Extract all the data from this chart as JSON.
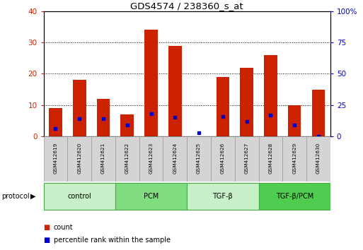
{
  "title": "GDS4574 / 238360_s_at",
  "samples": [
    "GSM412619",
    "GSM412620",
    "GSM412621",
    "GSM412622",
    "GSM412623",
    "GSM412624",
    "GSM412625",
    "GSM412626",
    "GSM412627",
    "GSM412628",
    "GSM412629",
    "GSM412630"
  ],
  "count_values": [
    9,
    18,
    12,
    7,
    34,
    29,
    0,
    19,
    22,
    26,
    10,
    15
  ],
  "percentile_values": [
    6,
    14,
    14,
    9,
    18,
    15,
    3,
    16,
    12,
    17,
    9,
    0
  ],
  "bar_color": "#cc2200",
  "dot_color": "#0000cc",
  "left_ylim": [
    0,
    40
  ],
  "left_yticks": [
    0,
    10,
    20,
    30,
    40
  ],
  "right_ylim": [
    0,
    100
  ],
  "right_yticks": [
    0,
    25,
    50,
    75,
    100
  ],
  "left_ycolor": "#cc2200",
  "right_ycolor": "#0000cc",
  "groups": [
    {
      "label": "control",
      "start": 0,
      "end": 3,
      "color": "#c8f0c8"
    },
    {
      "label": "PCM",
      "start": 3,
      "end": 6,
      "color": "#80dd80"
    },
    {
      "label": "TGF-β",
      "start": 6,
      "end": 9,
      "color": "#c8f0c8"
    },
    {
      "label": "TGF-β/PCM",
      "start": 9,
      "end": 12,
      "color": "#50cc50"
    }
  ],
  "protocol_label": "protocol",
  "legend_count": "count",
  "legend_percentile": "percentile rank within the sample",
  "bar_width": 0.55,
  "bg_color": "#ffffff",
  "plot_bg_color": "#ffffff",
  "tick_label_color_left": "#cc2200",
  "tick_label_color_right": "#0000cc"
}
